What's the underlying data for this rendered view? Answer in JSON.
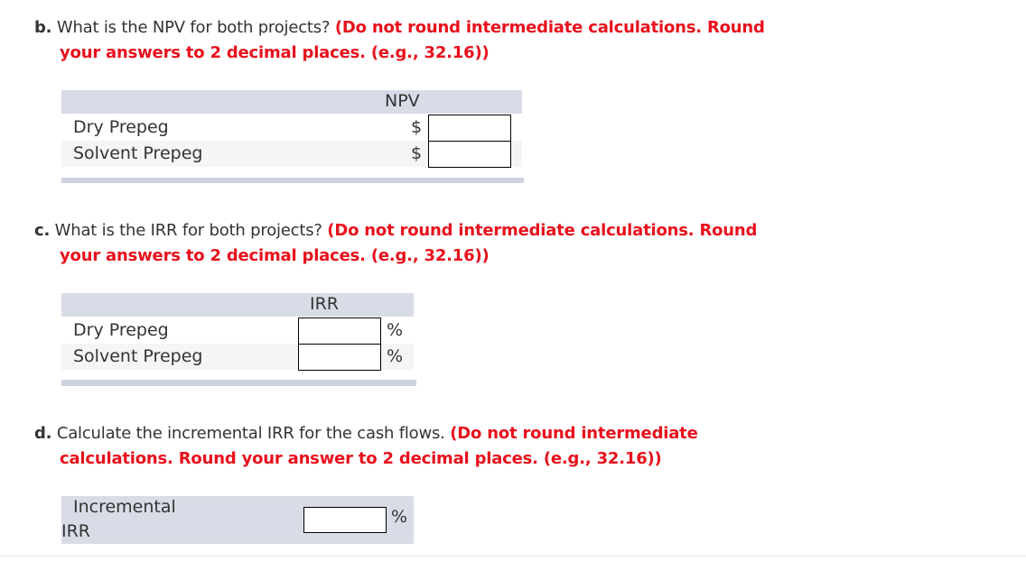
{
  "part_b": {
    "letter": "b.",
    "question": "What is the NPV for both projects?",
    "instruction_line1": "(Do not round intermediate calculations. Round",
    "instruction_line2": "your answers to 2 decimal places. (e.g., 32.16))",
    "table": {
      "header": "NPV",
      "currency": "$",
      "rows": [
        {
          "label": "Dry Prepeg",
          "value": ""
        },
        {
          "label": "Solvent Prepeg",
          "value": ""
        }
      ]
    }
  },
  "part_c": {
    "letter": "c.",
    "question": "What is the IRR for both projects?",
    "instruction_line1": "(Do not round intermediate calculations. Round",
    "instruction_line2": "your answers to 2 decimal places. (e.g., 32.16))",
    "table": {
      "header": "IRR",
      "unit": "%",
      "rows": [
        {
          "label": "Dry Prepeg",
          "value": ""
        },
        {
          "label": "Solvent Prepeg",
          "value": ""
        }
      ]
    }
  },
  "part_d": {
    "letter": "d.",
    "question": "Calculate the incremental IRR for the cash flows.",
    "instruction_line1": "(Do not round intermediate",
    "instruction_line2": "calculations. Round your answer to 2 decimal places. (e.g., 32.16))",
    "table": {
      "label_line1": "Incremental",
      "label_line2": "IRR",
      "unit": "%",
      "value": ""
    }
  }
}
